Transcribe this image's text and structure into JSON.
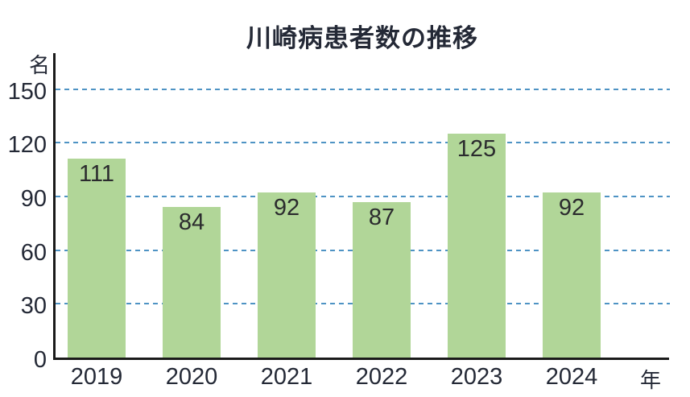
{
  "chart_data": {
    "type": "bar",
    "title": "川崎病患者数の推移",
    "categories": [
      "2019",
      "2020",
      "2021",
      "2022",
      "2023",
      "2024"
    ],
    "values": [
      111,
      84,
      92,
      87,
      125,
      92
    ],
    "xlabel": "年",
    "ylabel": "名",
    "ylim": [
      0,
      150
    ],
    "yticks": [
      0,
      30,
      60,
      90,
      120,
      150
    ],
    "grid": "horizontal-dashed",
    "legend": "none",
    "data_labels": true,
    "colors": {
      "bar_fill": "#b1d698",
      "gridline": "#4e93c4",
      "axis": "#1a1a1a",
      "text": "#242936",
      "value_label": "#2b2b2e",
      "background": "#ffffff"
    }
  }
}
